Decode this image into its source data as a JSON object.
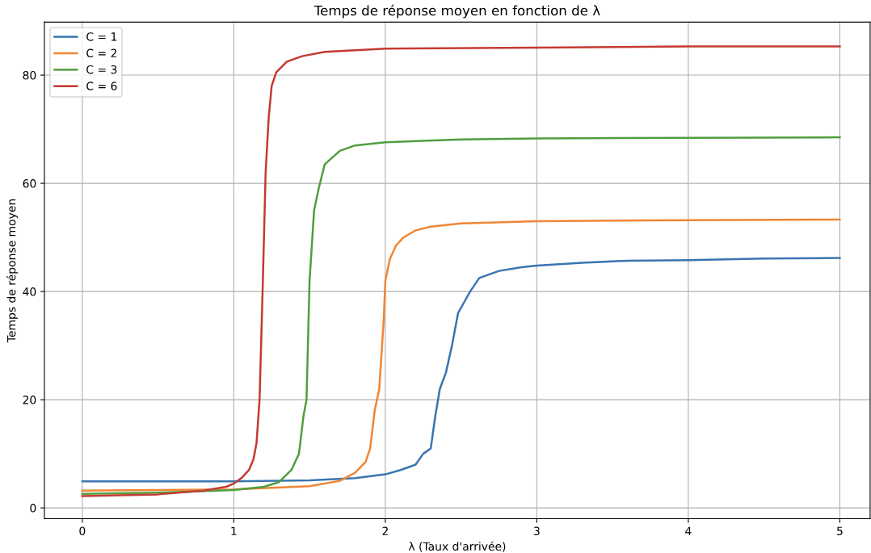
{
  "chart_data": {
    "type": "line",
    "title": "Temps de réponse moyen en fonction de λ",
    "xlabel": "λ (Taux d'arrivée)",
    "ylabel": "Temps de réponse moyen",
    "xlim": [
      -0.25,
      5.2
    ],
    "ylim": [
      -2,
      89.8
    ],
    "xticks": [
      0,
      1,
      2,
      3,
      4,
      5
    ],
    "yticks": [
      0,
      20,
      40,
      60,
      80
    ],
    "grid": true,
    "legend": "top left",
    "series": [
      {
        "name": "C = 1",
        "color": "#3a75af",
        "x": [
          0,
          1.0,
          1.5,
          1.8,
          2.0,
          2.1,
          2.2,
          2.25,
          2.3,
          2.33,
          2.36,
          2.4,
          2.44,
          2.48,
          2.52,
          2.56,
          2.62,
          2.75,
          2.9,
          3.0,
          3.3,
          3.6,
          4.0,
          4.5,
          5.0
        ],
        "values": [
          4.9,
          4.9,
          5.1,
          5.5,
          6.2,
          7,
          8,
          10,
          11,
          17,
          22,
          25,
          30,
          36,
          38,
          40,
          42.5,
          43.8,
          44.5,
          44.8,
          45.3,
          45.7,
          45.8,
          46.1,
          46.2
        ]
      },
      {
        "name": "C = 2",
        "color": "#ef8636",
        "x": [
          0,
          1.0,
          1.5,
          1.7,
          1.8,
          1.87,
          1.9,
          1.93,
          1.96,
          1.99,
          2.0,
          2.03,
          2.07,
          2.12,
          2.2,
          2.3,
          2.5,
          3.0,
          4.0,
          5.0
        ],
        "values": [
          3.2,
          3.4,
          4.0,
          5,
          6.5,
          8.5,
          11,
          18,
          22,
          35,
          42,
          46,
          48.5,
          50,
          51.3,
          52,
          52.6,
          53.0,
          53.2,
          53.3
        ]
      },
      {
        "name": "C = 3",
        "color": "#519e3e",
        "x": [
          0,
          0.5,
          1.0,
          1.2,
          1.3,
          1.38,
          1.43,
          1.46,
          1.48,
          1.5,
          1.53,
          1.56,
          1.6,
          1.7,
          1.8,
          2.0,
          2.5,
          3.0,
          4.0,
          5.0
        ],
        "values": [
          2.6,
          2.8,
          3.3,
          3.9,
          4.8,
          7,
          10,
          17,
          20,
          42,
          55,
          59,
          63.5,
          66,
          67,
          67.6,
          68.1,
          68.3,
          68.4,
          68.5
        ]
      },
      {
        "name": "C = 6",
        "color": "#c53a32",
        "x": [
          0,
          0.5,
          0.8,
          0.95,
          1.0,
          1.05,
          1.1,
          1.13,
          1.15,
          1.17,
          1.19,
          1.21,
          1.23,
          1.25,
          1.28,
          1.35,
          1.45,
          1.6,
          2.0,
          3.0,
          4.0,
          5.0
        ],
        "values": [
          2.2,
          2.5,
          3.2,
          3.9,
          4.5,
          5.5,
          7,
          9,
          12,
          20,
          40,
          62,
          72,
          78,
          80.5,
          82.5,
          83.5,
          84.3,
          84.9,
          85.1,
          85.3,
          85.3
        ]
      }
    ]
  }
}
